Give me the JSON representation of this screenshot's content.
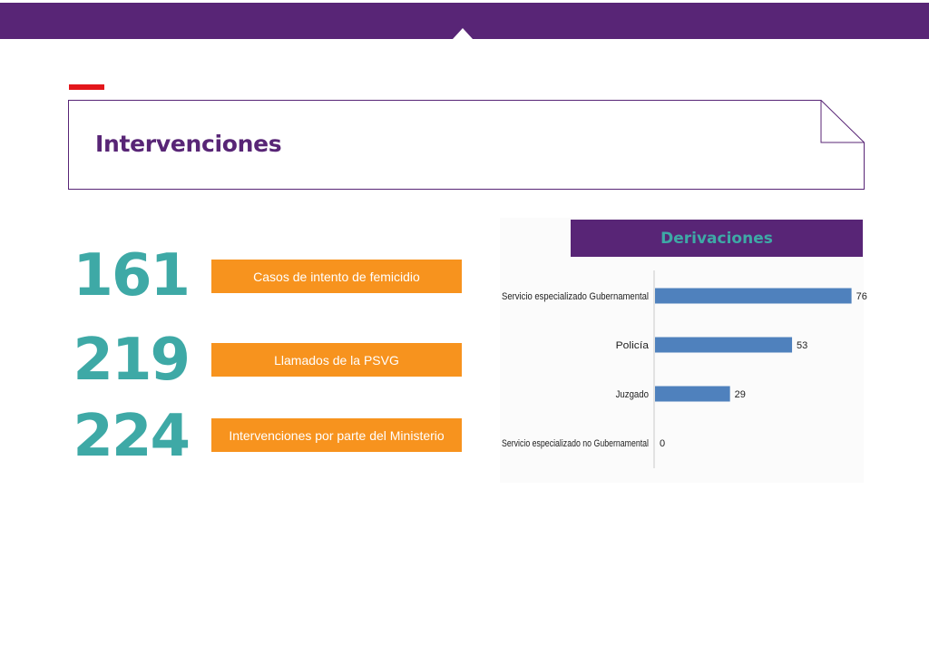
{
  "title": "Intervenciones",
  "stats": [
    {
      "number": "161",
      "label": "Casos de intento de femicidio"
    },
    {
      "number": "219",
      "label": "Llamados de la PSVG"
    },
    {
      "number": "224",
      "label": "Intervenciones por parte del Ministerio"
    }
  ],
  "colors": {
    "header_purple": "#582576",
    "accent_red": "#e3161b",
    "teal": "#3ea9a6",
    "orange": "#f7931e",
    "bar_blue": "#4f81bd"
  },
  "chart_data": {
    "type": "bar",
    "orientation": "horizontal",
    "title": "Derivaciones",
    "categories": [
      "Servicio especializado Gubernamental",
      "Policía",
      "Juzgado",
      "Servicio especializado no Gubernamental"
    ],
    "values": [
      76,
      53,
      29,
      0
    ],
    "xlim": [
      0,
      80
    ],
    "grid": false,
    "legend": "none",
    "data_labels": true
  }
}
